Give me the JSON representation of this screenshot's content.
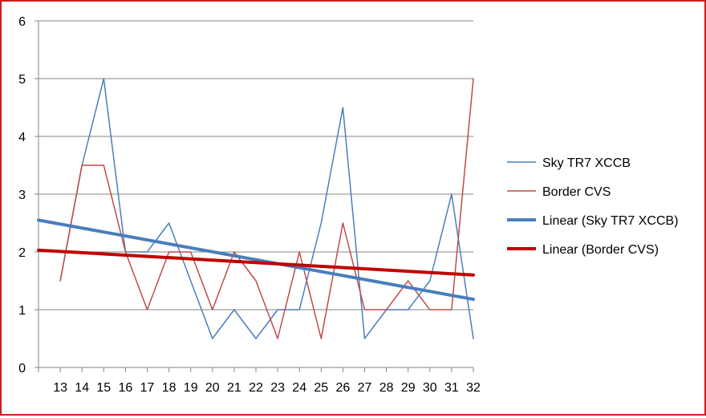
{
  "chart_data": {
    "type": "line",
    "title": "",
    "xlabel": "",
    "ylabel": "",
    "categories": [
      "13",
      "14",
      "15",
      "16",
      "17",
      "18",
      "19",
      "20",
      "21",
      "22",
      "23",
      "24",
      "25",
      "26",
      "27",
      "28",
      "29",
      "30",
      "31",
      "32"
    ],
    "ylim": [
      0,
      6
    ],
    "yticks": [
      "0",
      "1",
      "2",
      "3",
      "4",
      "5",
      "6"
    ],
    "grid": "horizontal",
    "legend_position": "right",
    "series": [
      {
        "name": "Sky TR7 XCCB",
        "kind": "data",
        "color": "#4a7ebb",
        "values": [
          1.5,
          3.5,
          5,
          2,
          2,
          2.5,
          1.5,
          0.5,
          1,
          0.5,
          1,
          1,
          2.5,
          4.5,
          0.5,
          1,
          1,
          1.5,
          3,
          0.5
        ]
      },
      {
        "name": "Border CVS",
        "kind": "data",
        "color": "#be4b48",
        "values": [
          1.5,
          3.5,
          3.5,
          2,
          1,
          2,
          2,
          1,
          2,
          1.5,
          0.5,
          2,
          0.5,
          2.5,
          1,
          1,
          1.5,
          1,
          1,
          5
        ]
      },
      {
        "name": "Linear (Sky TR7 XCCB)",
        "kind": "trendline",
        "color": "#4a7ebb",
        "start_value": 2.55,
        "end_value": 1.18
      },
      {
        "name": "Linear (Border CVS)",
        "kind": "trendline",
        "color": "#c00000",
        "start_value": 2.03,
        "end_value": 1.6
      }
    ]
  }
}
